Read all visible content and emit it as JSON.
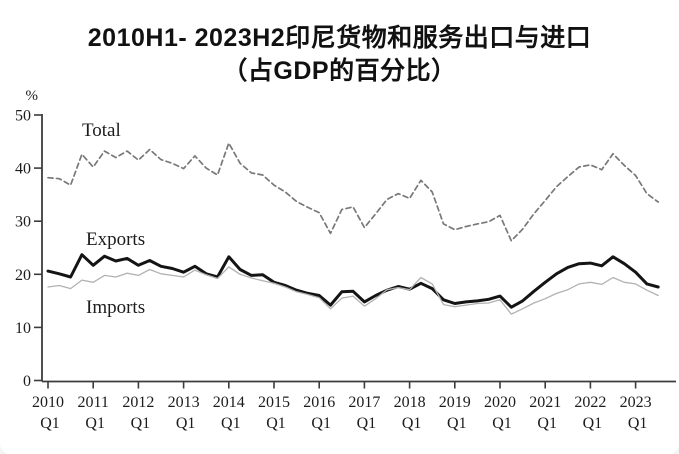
{
  "title": {
    "line1": "2010H1- 2023H2印尼货物和服务出口与进口",
    "line2": "（占GDP的百分比）"
  },
  "chart_data": {
    "type": "line",
    "title": "2010H1- 2023H2印尼货物和服务出口与进口（占GDP的百分比）",
    "ylabel": "%",
    "xlabel": "",
    "ylim": [
      0,
      50
    ],
    "yticks": [
      0,
      10,
      20,
      30,
      40,
      50
    ],
    "grid": false,
    "legend_position": "inline-labels",
    "x_tick_years": [
      "2010",
      "2011",
      "2012",
      "2013",
      "2014",
      "2015",
      "2016",
      "2017",
      "2018",
      "2019",
      "2020",
      "2021",
      "2022",
      "2023"
    ],
    "x_tick_subline": "Q1",
    "x": [
      "2010Q1",
      "2010Q2",
      "2010Q3",
      "2010Q4",
      "2011Q1",
      "2011Q2",
      "2011Q3",
      "2011Q4",
      "2012Q1",
      "2012Q2",
      "2012Q3",
      "2012Q4",
      "2013Q1",
      "2013Q2",
      "2013Q3",
      "2013Q4",
      "2014Q1",
      "2014Q2",
      "2014Q3",
      "2014Q4",
      "2015Q1",
      "2015Q2",
      "2015Q3",
      "2015Q4",
      "2016Q1",
      "2016Q2",
      "2016Q3",
      "2016Q4",
      "2017Q1",
      "2017Q2",
      "2017Q3",
      "2017Q4",
      "2018Q1",
      "2018Q2",
      "2018Q3",
      "2018Q4",
      "2019Q1",
      "2019Q2",
      "2019Q3",
      "2019Q4",
      "2020Q1",
      "2020Q2",
      "2020Q3",
      "2020Q4",
      "2021Q1",
      "2021Q2",
      "2021Q3",
      "2021Q4",
      "2022Q1",
      "2022Q2",
      "2022Q3",
      "2022Q4",
      "2023Q1",
      "2023Q2",
      "2023Q3"
    ],
    "series": [
      {
        "name": "Total",
        "style": "dashed",
        "color": "#787878",
        "values": [
          38.2,
          38.0,
          36.8,
          42.6,
          40.2,
          43.2,
          42.0,
          43.2,
          41.5,
          43.5,
          41.6,
          40.9,
          39.9,
          42.3,
          40.0,
          38.7,
          44.7,
          40.9,
          39.1,
          38.7,
          36.8,
          35.5,
          33.7,
          32.6,
          31.6,
          27.7,
          32.2,
          32.7,
          28.8,
          31.4,
          34.1,
          35.2,
          34.3,
          37.7,
          35.5,
          29.5,
          28.4,
          29.0,
          29.5,
          29.9,
          31.1,
          26.3,
          28.5,
          31.4,
          33.9,
          36.5,
          38.4,
          40.2,
          40.6,
          39.7,
          42.7,
          40.5,
          38.6,
          35.2,
          33.6
        ]
      },
      {
        "name": "Exports",
        "style": "solid-bold",
        "color": "#141414",
        "values": [
          20.6,
          20.1,
          19.5,
          23.7,
          21.7,
          23.4,
          22.5,
          23.0,
          21.7,
          22.6,
          21.5,
          21.1,
          20.4,
          21.5,
          20.1,
          19.5,
          23.3,
          20.9,
          19.8,
          19.9,
          18.5,
          17.9,
          17.0,
          16.4,
          16.0,
          14.2,
          16.7,
          16.8,
          14.8,
          16.0,
          17.0,
          17.7,
          17.2,
          18.3,
          17.3,
          15.2,
          14.5,
          14.8,
          15.0,
          15.3,
          15.9,
          13.8,
          15.0,
          16.8,
          18.5,
          20.1,
          21.3,
          22.0,
          22.1,
          21.6,
          23.3,
          22.0,
          20.4,
          18.2,
          17.6
        ]
      },
      {
        "name": "Imports",
        "style": "solid-thin",
        "color": "#b2b2b2",
        "values": [
          17.6,
          17.9,
          17.3,
          18.9,
          18.5,
          19.8,
          19.5,
          20.2,
          19.8,
          20.9,
          20.1,
          19.8,
          19.5,
          20.8,
          19.9,
          19.2,
          21.4,
          20.0,
          19.3,
          18.8,
          18.3,
          17.6,
          16.7,
          16.2,
          15.6,
          13.5,
          15.5,
          15.9,
          14.0,
          15.4,
          17.1,
          17.5,
          17.1,
          19.4,
          18.2,
          14.3,
          13.9,
          14.2,
          14.5,
          14.6,
          15.2,
          12.5,
          13.5,
          14.6,
          15.4,
          16.4,
          17.1,
          18.2,
          18.5,
          18.1,
          19.4,
          18.5,
          18.2,
          17.0,
          16.0
        ]
      }
    ]
  }
}
